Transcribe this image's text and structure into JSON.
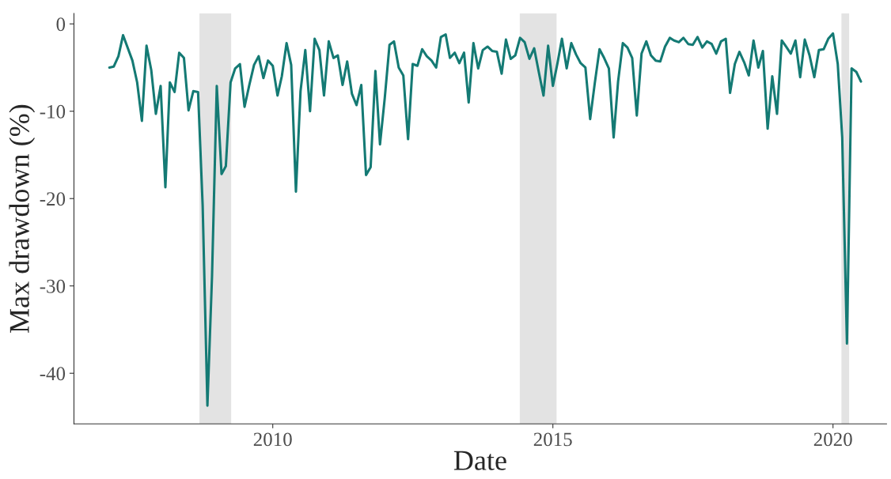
{
  "chart_data": {
    "type": "line",
    "xlabel": "Date",
    "ylabel": "Max drawdown (%)",
    "x": [
      "2007-02",
      "2007-03",
      "2007-04",
      "2007-05",
      "2007-07",
      "2007-08",
      "2007-09",
      "2007-10",
      "2007-11",
      "2007-12",
      "2008-01",
      "2008-02",
      "2008-03",
      "2008-04",
      "2008-05",
      "2008-06",
      "2008-07",
      "2008-08",
      "2008-09",
      "2008-10",
      "2008-11",
      "2008-12",
      "2009-01",
      "2009-02",
      "2009-03",
      "2009-04",
      "2009-05",
      "2009-06",
      "2009-07",
      "2009-08",
      "2009-09",
      "2009-10",
      "2009-11",
      "2009-12",
      "2010-01",
      "2010-02",
      "2010-03",
      "2010-04",
      "2010-05",
      "2010-06",
      "2010-07",
      "2010-08",
      "2010-09",
      "2010-10",
      "2010-11",
      "2010-12",
      "2011-01",
      "2011-02",
      "2011-03",
      "2011-04",
      "2011-05",
      "2011-06",
      "2011-07",
      "2011-08",
      "2011-09",
      "2011-10",
      "2011-11",
      "2011-12",
      "2012-01",
      "2012-02",
      "2012-03",
      "2012-04",
      "2012-05",
      "2012-06",
      "2012-07",
      "2012-08",
      "2012-09",
      "2012-10",
      "2012-11",
      "2012-12",
      "2013-01",
      "2013-02",
      "2013-03",
      "2013-04",
      "2013-05",
      "2013-06",
      "2013-07",
      "2013-08",
      "2013-09",
      "2013-10",
      "2013-11",
      "2013-12",
      "2014-01",
      "2014-02",
      "2014-03",
      "2014-04",
      "2014-05",
      "2014-06",
      "2014-07",
      "2014-08",
      "2014-09",
      "2014-10",
      "2014-11",
      "2014-12",
      "2015-01",
      "2015-02",
      "2015-03",
      "2015-04",
      "2015-05",
      "2015-06",
      "2015-07",
      "2015-08",
      "2015-09",
      "2015-10",
      "2015-11",
      "2015-12",
      "2016-01",
      "2016-02",
      "2016-03",
      "2016-04",
      "2016-05",
      "2016-06",
      "2016-07",
      "2016-08",
      "2016-09",
      "2016-10",
      "2016-11",
      "2016-12",
      "2017-01",
      "2017-02",
      "2017-03",
      "2017-04",
      "2017-05",
      "2017-06",
      "2017-07",
      "2017-08",
      "2017-09",
      "2017-10",
      "2017-11",
      "2017-12",
      "2018-01",
      "2018-02",
      "2018-03",
      "2018-04",
      "2018-05",
      "2018-06",
      "2018-07",
      "2018-08",
      "2018-09",
      "2018-10",
      "2018-11",
      "2018-12",
      "2019-01",
      "2019-02",
      "2019-03",
      "2019-04",
      "2019-05",
      "2019-06",
      "2019-07",
      "2019-08",
      "2019-09",
      "2019-10",
      "2019-11",
      "2019-12",
      "2020-01",
      "2020-02",
      "2020-03",
      "2020-04",
      "2020-05",
      "2020-06",
      "2020-07"
    ],
    "series": [
      {
        "color": "#147a74",
        "values": [
          -5.0,
          -4.9,
          -3.7,
          -1.3,
          -4.2,
          -6.7,
          -11.1,
          -2.5,
          -5.3,
          -10.3,
          -7.1,
          -18.7,
          -6.7,
          -7.8,
          -3.3,
          -3.9,
          -9.9,
          -7.7,
          -7.8,
          -20.8,
          -43.7,
          -28.9,
          -7.1,
          -17.2,
          -16.3,
          -6.7,
          -5.1,
          -4.6,
          -9.5,
          -7.0,
          -4.7,
          -3.7,
          -6.2,
          -4.2,
          -4.8,
          -8.2,
          -6.0,
          -2.2,
          -4.7,
          -19.2,
          -7.7,
          -3.0,
          -10.0,
          -1.7,
          -3.0,
          -8.2,
          -2.0,
          -3.9,
          -3.6,
          -7.0,
          -4.3,
          -8.0,
          -9.3,
          -7.0,
          -17.3,
          -16.4,
          -5.4,
          -13.8,
          -8.5,
          -2.4,
          -2.0,
          -5.0,
          -5.9,
          -13.2,
          -4.6,
          -4.8,
          -2.9,
          -3.7,
          -4.2,
          -5.0,
          -1.5,
          -1.2,
          -3.9,
          -3.3,
          -4.5,
          -3.3,
          -9.0,
          -2.2,
          -5.1,
          -3.0,
          -2.6,
          -3.1,
          -3.2,
          -5.7,
          -1.8,
          -4.0,
          -3.6,
          -1.6,
          -2.1,
          -4.0,
          -2.8,
          -5.5,
          -8.2,
          -2.5,
          -7.1,
          -4.4,
          -1.7,
          -5.1,
          -2.2,
          -3.5,
          -4.5,
          -5.0,
          -10.9,
          -6.8,
          -2.9,
          -3.9,
          -5.1,
          -13.0,
          -6.6,
          -2.2,
          -2.7,
          -3.9,
          -10.5,
          -3.4,
          -2.0,
          -3.6,
          -4.2,
          -4.3,
          -2.6,
          -1.6,
          -1.9,
          -2.1,
          -1.6,
          -2.3,
          -2.4,
          -1.5,
          -2.7,
          -2.0,
          -2.3,
          -3.4,
          -2.0,
          -1.7,
          -7.9,
          -4.6,
          -3.2,
          -4.4,
          -5.9,
          -1.9,
          -5.0,
          -3.1,
          -12.0,
          -6.0,
          -10.3,
          -1.9,
          -2.6,
          -3.4,
          -1.9,
          -6.1,
          -1.8,
          -3.6,
          -6.1,
          -3.0,
          -2.9,
          -1.7,
          -1.1,
          -4.6,
          -13.0,
          -36.6,
          -5.1,
          -5.5,
          -6.6
        ]
      }
    ],
    "xlim": [
      "2006-06-15",
      "2020-12-15"
    ],
    "xticks": [
      "2010",
      "2015",
      "2020"
    ],
    "ylim": [
      -45.8,
      1.2
    ],
    "yticks": [
      0,
      -10,
      -20,
      -30,
      -40
    ],
    "bands": [
      {
        "axis": "x",
        "from": "2008-09-10",
        "to": "2009-04-05",
        "color": "#e3e3e3"
      },
      {
        "axis": "x",
        "from": "2014-05-30",
        "to": "2015-01-25",
        "color": "#e3e3e3"
      },
      {
        "axis": "x",
        "from": "2020-02-25",
        "to": "2020-04-15",
        "color": "#e3e3e3"
      }
    ],
    "grid": false,
    "legend": false,
    "line_style": "solid"
  }
}
